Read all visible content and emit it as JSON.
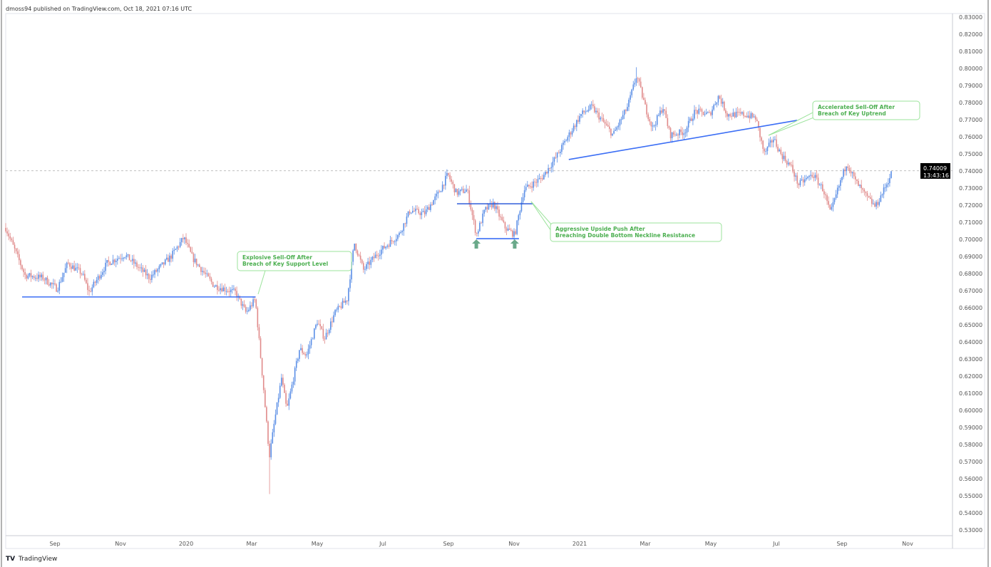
{
  "header": {
    "published": "dmoss94 published on TradingView.com, Oct 18, 2021 07:16 UTC"
  },
  "footer": {
    "brand": "TradingView",
    "logo": "tradingview-logo"
  },
  "price_label": {
    "price": "0.74009",
    "countdown": "13:43:16"
  },
  "colors": {
    "up": "#5a8ee6",
    "down": "#e08a8a",
    "trendline": "#3b6ef5",
    "neckline": "#1f4fd6",
    "note": "#4caf50",
    "note_border": "#9be39b",
    "arrow": "#6aa98a"
  },
  "chart_data": {
    "type": "candlestick",
    "title": "",
    "time_unit": "months since 2019-07-01",
    "xlabel": "",
    "ylabel": "",
    "ylim": [
      0.53,
      0.83
    ],
    "x_ticks": [
      {
        "t": 2,
        "label": "Sep"
      },
      {
        "t": 4,
        "label": "Nov"
      },
      {
        "t": 6,
        "label": "2020"
      },
      {
        "t": 8,
        "label": "Mar"
      },
      {
        "t": 10,
        "label": "May"
      },
      {
        "t": 12,
        "label": "Jul"
      },
      {
        "t": 14,
        "label": "Sep"
      },
      {
        "t": 16,
        "label": "Nov"
      },
      {
        "t": 18,
        "label": "2021"
      },
      {
        "t": 20,
        "label": "Mar"
      },
      {
        "t": 22,
        "label": "May"
      },
      {
        "t": 24,
        "label": "Jul"
      },
      {
        "t": 26,
        "label": "Sep"
      },
      {
        "t": 28,
        "label": "Nov"
      }
    ],
    "y_ticks": [
      "0.53000",
      "0.54000",
      "0.55000",
      "0.56000",
      "0.57000",
      "0.58000",
      "0.59000",
      "0.60000",
      "0.61000",
      "0.62000",
      "0.63000",
      "0.64000",
      "0.65000",
      "0.66000",
      "0.67000",
      "0.68000",
      "0.69000",
      "0.70000",
      "0.71000",
      "0.72000",
      "0.73000",
      "0.74000",
      "0.75000",
      "0.76000",
      "0.77000",
      "0.78000",
      "0.79000",
      "0.80000",
      "0.81000",
      "0.82000",
      "0.83000"
    ],
    "last_price": 0.74009,
    "period_low": 0.551,
    "period_high": 0.8007,
    "close_path": [
      [
        0.5,
        0.7067
      ],
      [
        1.09,
        0.679
      ],
      [
        1.63,
        0.6775
      ],
      [
        2.07,
        0.671
      ],
      [
        2.39,
        0.686
      ],
      [
        2.83,
        0.68
      ],
      [
        3.04,
        0.669
      ],
      [
        3.59,
        0.686
      ],
      [
        4.13,
        0.691
      ],
      [
        4.89,
        0.6775
      ],
      [
        5.54,
        0.69
      ],
      [
        5.93,
        0.701
      ],
      [
        6.2,
        0.689
      ],
      [
        6.85,
        0.673
      ],
      [
        7.5,
        0.669
      ],
      [
        7.83,
        0.657
      ],
      [
        8.11,
        0.665
      ],
      [
        8.37,
        0.611
      ],
      [
        8.54,
        0.573
      ],
      [
        8.7,
        0.594
      ],
      [
        8.91,
        0.619
      ],
      [
        9.07,
        0.6
      ],
      [
        9.46,
        0.636
      ],
      [
        9.67,
        0.632
      ],
      [
        10.0,
        0.652
      ],
      [
        10.22,
        0.642
      ],
      [
        10.54,
        0.657
      ],
      [
        10.91,
        0.665
      ],
      [
        11.13,
        0.698
      ],
      [
        11.41,
        0.682
      ],
      [
        11.85,
        0.692
      ],
      [
        12.5,
        0.703
      ],
      [
        12.83,
        0.717
      ],
      [
        13.26,
        0.715
      ],
      [
        13.7,
        0.727
      ],
      [
        13.98,
        0.738
      ],
      [
        14.24,
        0.727
      ],
      [
        14.57,
        0.729
      ],
      [
        14.85,
        0.7025
      ],
      [
        15.11,
        0.717
      ],
      [
        15.37,
        0.721
      ],
      [
        15.72,
        0.707
      ],
      [
        16.02,
        0.7025
      ],
      [
        16.3,
        0.729
      ],
      [
        16.85,
        0.736
      ],
      [
        17.28,
        0.748
      ],
      [
        17.61,
        0.759
      ],
      [
        18.04,
        0.773
      ],
      [
        18.37,
        0.7775
      ],
      [
        19.02,
        0.761
      ],
      [
        19.46,
        0.7775
      ],
      [
        19.74,
        0.796
      ],
      [
        20.0,
        0.7775
      ],
      [
        20.22,
        0.765
      ],
      [
        20.54,
        0.7775
      ],
      [
        20.76,
        0.761
      ],
      [
        21.2,
        0.763
      ],
      [
        21.52,
        0.775
      ],
      [
        21.96,
        0.773
      ],
      [
        22.24,
        0.784
      ],
      [
        22.5,
        0.773
      ],
      [
        23.04,
        0.773
      ],
      [
        23.37,
        0.771
      ],
      [
        23.63,
        0.75
      ],
      [
        23.91,
        0.759
      ],
      [
        24.13,
        0.75
      ],
      [
        24.46,
        0.742
      ],
      [
        24.67,
        0.732
      ],
      [
        25.11,
        0.738
      ],
      [
        25.43,
        0.729
      ],
      [
        25.65,
        0.715
      ],
      [
        25.87,
        0.729
      ],
      [
        26.15,
        0.745
      ],
      [
        26.41,
        0.734
      ],
      [
        26.74,
        0.725
      ],
      [
        27.02,
        0.719
      ],
      [
        27.28,
        0.729
      ],
      [
        27.54,
        0.74009
      ]
    ],
    "drawings": {
      "support_line": {
        "t": [
          1.0,
          8.12
        ],
        "price": 0.6663
      },
      "neckline": {
        "t": [
          14.26,
          16.59
        ],
        "price": 0.7208
      },
      "double_bottom_line": {
        "t": [
          14.85,
          16.15
        ],
        "price": 0.7004
      },
      "uptrend_line": {
        "t": [
          17.67,
          24.63
        ],
        "price": [
          0.7467,
          0.7696
        ]
      },
      "bottom_arrows_t": [
        14.85,
        16.02
      ]
    },
    "annotations": [
      {
        "lines": [
          "Explosive Sell-Off After",
          "Breach of Key Support Level"
        ]
      },
      {
        "lines": [
          "Aggressive Upside Push After",
          "Breaching Double Bottom Neckline Resistance"
        ]
      },
      {
        "lines": [
          "Accelerated Sell-Off After",
          "Breach of Key Uptrend"
        ]
      }
    ]
  }
}
